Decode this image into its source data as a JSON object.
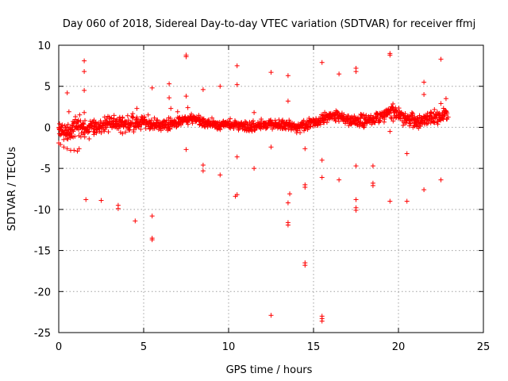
{
  "chart_data": {
    "type": "scatter",
    "title": "Day 060 of 2018, Sidereal Day-to-day VTEC variation (SDTVAR) for receiver ffmj",
    "xlabel": "GPS time / hours",
    "ylabel": "SDTVAR / TECUs",
    "xlim": [
      0,
      25
    ],
    "ylim": [
      -25,
      10
    ],
    "xticks": [
      0,
      5,
      10,
      15,
      20,
      25
    ],
    "yticks": [
      -25,
      -20,
      -15,
      -10,
      -5,
      0,
      5,
      10
    ],
    "xtick_labels": [
      "0",
      "5",
      "10",
      "15",
      "20",
      "25"
    ],
    "ytick_labels": [
      "-25",
      "-20",
      "-15",
      "-10",
      "-5",
      "0",
      "5",
      "10"
    ],
    "grid": true,
    "marker": "+",
    "color": "#ff0000",
    "series": [
      {
        "name": "SDTVAR",
        "band": {
          "x": [
            0.0,
            0.3,
            0.6,
            1.0,
            1.5,
            2.0,
            2.5,
            3.0,
            3.5,
            4.0,
            4.5,
            5.0,
            5.5,
            6.0,
            6.5,
            7.0,
            7.5,
            8.0,
            8.5,
            9.0,
            9.5,
            10.0,
            10.5,
            11.0,
            11.5,
            12.0,
            12.5,
            13.0,
            13.5,
            14.0,
            14.5,
            15.0,
            15.5,
            16.0,
            16.5,
            17.0,
            17.5,
            18.0,
            18.5,
            19.0,
            19.5,
            20.0,
            20.5,
            21.0,
            21.5,
            22.0,
            22.5,
            22.9
          ],
          "center": [
            -0.2,
            -0.6,
            -0.8,
            0.3,
            -0.2,
            -0.3,
            0.2,
            0.5,
            0.4,
            0.3,
            0.6,
            0.6,
            0.4,
            0.2,
            0.4,
            0.6,
            0.9,
            1.0,
            0.7,
            0.4,
            0.2,
            0.4,
            0.3,
            0.1,
            0.2,
            0.3,
            0.5,
            0.3,
            0.2,
            0.0,
            0.3,
            0.7,
            1.0,
            1.4,
            1.4,
            0.9,
            0.8,
            0.6,
            0.9,
            1.5,
            1.9,
            1.6,
            1.1,
            0.7,
            1.0,
            1.2,
            1.4,
            1.5
          ],
          "spread": [
            1.2,
            1.4,
            1.5,
            1.8,
            1.7,
            1.6,
            1.4,
            1.2,
            1.3,
            1.4,
            1.3,
            1.2,
            1.1,
            1.0,
            1.0,
            0.9,
            0.9,
            0.8,
            0.8,
            0.8,
            0.8,
            0.8,
            0.8,
            0.8,
            0.8,
            0.8,
            0.8,
            0.8,
            0.8,
            0.9,
            0.9,
            0.9,
            0.9,
            0.9,
            1.0,
            1.0,
            1.0,
            1.1,
            1.2,
            1.3,
            1.3,
            1.3,
            1.2,
            1.1,
            1.1,
            1.2,
            1.3,
            1.4
          ]
        },
        "points": [
          [
            0.0,
            -1.9
          ],
          [
            0.1,
            -2.1
          ],
          [
            0.3,
            -2.4
          ],
          [
            0.5,
            -2.6
          ],
          [
            0.7,
            -2.8
          ],
          [
            0.9,
            -2.8
          ],
          [
            1.1,
            -2.9
          ],
          [
            1.2,
            -2.6
          ],
          [
            0.5,
            4.2
          ],
          [
            0.6,
            1.9
          ],
          [
            1.5,
            8.1
          ],
          [
            1.5,
            6.8
          ],
          [
            1.5,
            4.5
          ],
          [
            1.5,
            1.8
          ],
          [
            1.6,
            -8.8
          ],
          [
            2.5,
            -8.9
          ],
          [
            3.5,
            -9.5
          ],
          [
            3.5,
            -9.9
          ],
          [
            4.5,
            -11.4
          ],
          [
            4.6,
            2.3
          ],
          [
            5.5,
            4.8
          ],
          [
            5.5,
            -10.8
          ],
          [
            5.5,
            -13.5
          ],
          [
            5.5,
            -13.7
          ],
          [
            6.5,
            5.3
          ],
          [
            6.5,
            3.6
          ],
          [
            6.6,
            2.3
          ],
          [
            7.0,
            1.9
          ],
          [
            7.5,
            8.6
          ],
          [
            7.5,
            8.8
          ],
          [
            7.5,
            3.8
          ],
          [
            7.6,
            2.4
          ],
          [
            7.5,
            -2.7
          ],
          [
            8.5,
            4.6
          ],
          [
            8.5,
            -4.6
          ],
          [
            8.5,
            -5.3
          ],
          [
            9.5,
            5.0
          ],
          [
            9.5,
            -5.8
          ],
          [
            10.5,
            7.5
          ],
          [
            10.5,
            5.2
          ],
          [
            10.5,
            -3.6
          ],
          [
            10.5,
            -8.2
          ],
          [
            10.4,
            -8.4
          ],
          [
            11.5,
            -5.0
          ],
          [
            11.5,
            1.8
          ],
          [
            12.5,
            6.7
          ],
          [
            12.5,
            -2.4
          ],
          [
            12.5,
            -22.9
          ],
          [
            13.5,
            6.3
          ],
          [
            13.5,
            3.2
          ],
          [
            13.6,
            -8.1
          ],
          [
            13.5,
            -9.2
          ],
          [
            13.5,
            -11.6
          ],
          [
            13.5,
            -11.9
          ],
          [
            14.5,
            -2.6
          ],
          [
            14.5,
            -7.0
          ],
          [
            14.5,
            -7.3
          ],
          [
            14.5,
            -16.5
          ],
          [
            14.5,
            -16.8
          ],
          [
            15.5,
            7.9
          ],
          [
            15.5,
            -4.0
          ],
          [
            15.5,
            -6.1
          ],
          [
            15.5,
            -23.0
          ],
          [
            15.5,
            -23.3
          ],
          [
            15.5,
            -23.6
          ],
          [
            16.5,
            6.5
          ],
          [
            16.5,
            -6.4
          ],
          [
            17.5,
            7.2
          ],
          [
            17.5,
            6.8
          ],
          [
            17.5,
            -4.7
          ],
          [
            17.5,
            -8.8
          ],
          [
            17.5,
            -9.8
          ],
          [
            17.5,
            -10.1
          ],
          [
            18.5,
            -4.7
          ],
          [
            18.5,
            -6.8
          ],
          [
            18.5,
            -7.1
          ],
          [
            19.5,
            9.0
          ],
          [
            19.5,
            8.8
          ],
          [
            19.5,
            -0.5
          ],
          [
            19.5,
            -9.0
          ],
          [
            20.5,
            -3.2
          ],
          [
            20.5,
            -9.0
          ],
          [
            21.5,
            5.5
          ],
          [
            21.5,
            4.0
          ],
          [
            21.5,
            -7.6
          ],
          [
            22.5,
            8.3
          ],
          [
            22.5,
            2.9
          ],
          [
            22.5,
            -6.4
          ],
          [
            22.8,
            3.5
          ]
        ]
      }
    ]
  }
}
